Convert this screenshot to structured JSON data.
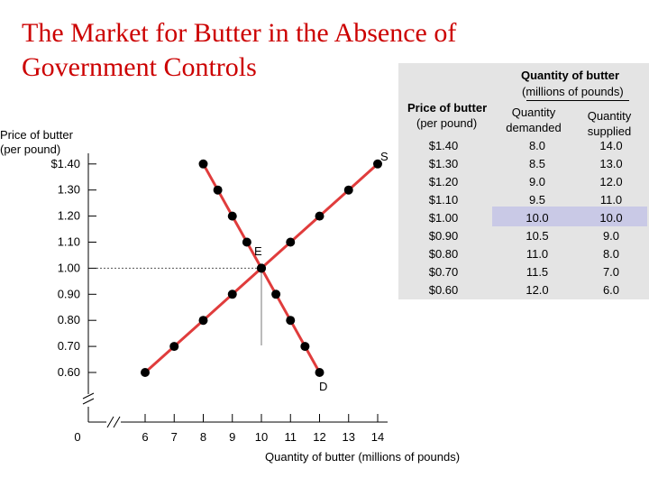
{
  "title": {
    "line1": "The Market for Butter in the Absence of",
    "line2": "Government Controls"
  },
  "table": {
    "header_group": "Quantity of butter",
    "header_group_sub": "(millions of pounds)",
    "col_price_title": "Price of butter",
    "col_price_sub": "(per pound)",
    "col_qd_line1": "Quantity",
    "col_qd_line2": "demanded",
    "col_qs_line1": "Quantity",
    "col_qs_line2": "supplied",
    "highlight_color": "#c9c9e6",
    "rows": [
      {
        "price": "$1.40",
        "qd": "8.0",
        "qs": "14.0"
      },
      {
        "price": "$1.30",
        "qd": "8.5",
        "qs": "13.0"
      },
      {
        "price": "$1.20",
        "qd": "9.0",
        "qs": "12.0"
      },
      {
        "price": "$1.10",
        "qd": "9.5",
        "qs": "11.0"
      },
      {
        "price": "$1.00",
        "qd": "10.0",
        "qs": "10.0"
      },
      {
        "price": "$0.90",
        "qd": "10.5",
        "qs": "9.0"
      },
      {
        "price": "$0.80",
        "qd": "11.0",
        "qs": "8.0"
      },
      {
        "price": "$0.70",
        "qd": "11.5",
        "qs": "7.0"
      },
      {
        "price": "$0.60",
        "qd": "12.0",
        "qs": "6.0"
      }
    ]
  },
  "chart_data": {
    "type": "line",
    "title": "",
    "xlabel": "Quantity of butter (millions of pounds)",
    "ylabel_line1": "Price of butter",
    "ylabel_line2": "(per pound)",
    "x_ticks": [
      "0",
      "6",
      "7",
      "8",
      "9",
      "10",
      "11",
      "12",
      "13",
      "14"
    ],
    "y_ticks": [
      "$1.40",
      "1.30",
      "1.20",
      "1.10",
      "1.00",
      "0.90",
      "0.80",
      "0.70",
      "0.60"
    ],
    "ylim": [
      0.6,
      1.4
    ],
    "xlim": [
      6,
      14
    ],
    "line_color": "#e03c3c",
    "series": [
      {
        "name": "S",
        "points": [
          [
            6,
            0.6
          ],
          [
            7,
            0.7
          ],
          [
            8,
            0.8
          ],
          [
            9,
            0.9
          ],
          [
            10,
            1.0
          ],
          [
            11,
            1.1
          ],
          [
            12,
            1.2
          ],
          [
            13,
            1.3
          ],
          [
            14,
            1.4
          ]
        ]
      },
      {
        "name": "D",
        "points": [
          [
            8,
            1.4
          ],
          [
            8.5,
            1.3
          ],
          [
            9,
            1.2
          ],
          [
            9.5,
            1.1
          ],
          [
            10,
            1.0
          ],
          [
            10.5,
            0.9
          ],
          [
            11,
            0.8
          ],
          [
            11.5,
            0.7
          ],
          [
            12,
            0.6
          ]
        ]
      }
    ],
    "equilibrium": {
      "label": "E",
      "x": 10,
      "y": 1.0
    },
    "supply_label": "S",
    "demand_label": "D"
  }
}
